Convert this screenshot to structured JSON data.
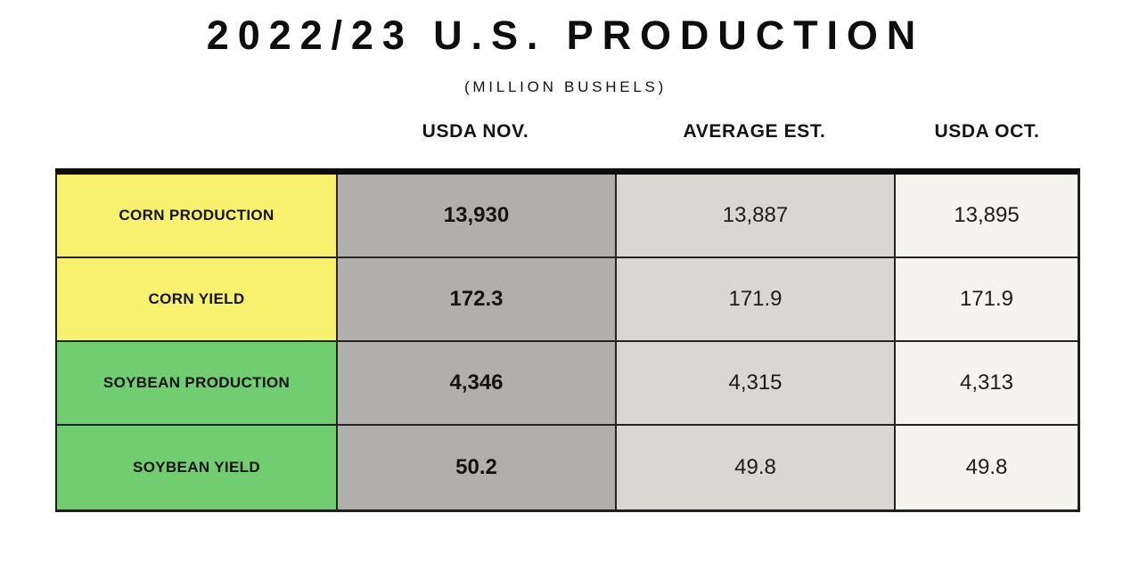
{
  "title": "2022/23 U.S. PRODUCTION",
  "subtitle": "(MILLION BUSHELS)",
  "colors": {
    "background": "#ffffff",
    "corn_row_label": "#f7f16d",
    "soybean_row_label": "#70cd70",
    "usda_nov_column": "#b0afae",
    "average_est_column": "#d9d7d4",
    "usda_oct_column": "#f6f4f1",
    "grid_border": "#242424",
    "top_bar": "#0c0c0c"
  },
  "table": {
    "column_headers": [
      "USDA NOV.",
      "AVERAGE EST.",
      "USDA OCT."
    ],
    "rows": [
      {
        "label": "CORN PRODUCTION",
        "values": [
          "13,930",
          "13,887",
          "13,895"
        ]
      },
      {
        "label": "CORN YIELD",
        "values": [
          "172.3",
          "171.9",
          "171.9"
        ]
      },
      {
        "label": "SOYBEAN PRODUCTION",
        "values": [
          "4,346",
          "4,315",
          "4,313"
        ]
      },
      {
        "label": "SOYBEAN YIELD",
        "values": [
          "50.2",
          "49.8",
          "49.8"
        ]
      }
    ]
  },
  "chart_data": {
    "type": "table",
    "title": "2022/23 U.S. PRODUCTION",
    "subtitle": "(MILLION BUSHELS)",
    "columns": [
      "",
      "USDA NOV.",
      "AVERAGE EST.",
      "USDA OCT."
    ],
    "rows": [
      [
        "CORN PRODUCTION",
        13930,
        13887,
        13895
      ],
      [
        "CORN YIELD",
        172.3,
        171.9,
        171.9
      ],
      [
        "SOYBEAN PRODUCTION",
        4346,
        4315,
        4313
      ],
      [
        "SOYBEAN YIELD",
        50.2,
        49.8,
        49.8
      ]
    ]
  }
}
